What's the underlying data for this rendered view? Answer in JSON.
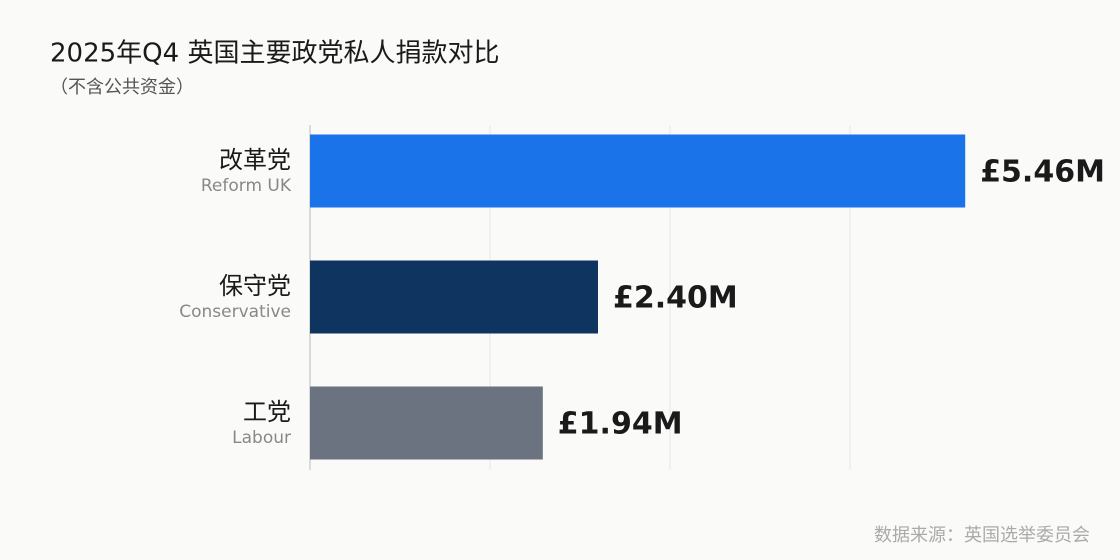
{
  "chart_data": {
    "type": "bar",
    "orientation": "horizontal",
    "title": "2025年Q4 英国主要政党私人捐款对比",
    "subtitle": "（不含公共资金）",
    "source": "数据来源：英国选举委员会",
    "categories": [
      "改革党",
      "保守党",
      "工党"
    ],
    "category_subtitles": [
      "Reform UK",
      "Conservative",
      "Labour"
    ],
    "values": [
      5.46,
      2.4,
      1.94
    ],
    "value_labels": [
      "£5.46M",
      "£2.40M",
      "£1.94M"
    ],
    "colors": [
      "#1a73e8",
      "#0f3460",
      "#6b7280"
    ],
    "xlim": [
      0,
      6.5
    ],
    "xticks": [
      0,
      1.5,
      3,
      4.5
    ],
    "grid": true
  }
}
